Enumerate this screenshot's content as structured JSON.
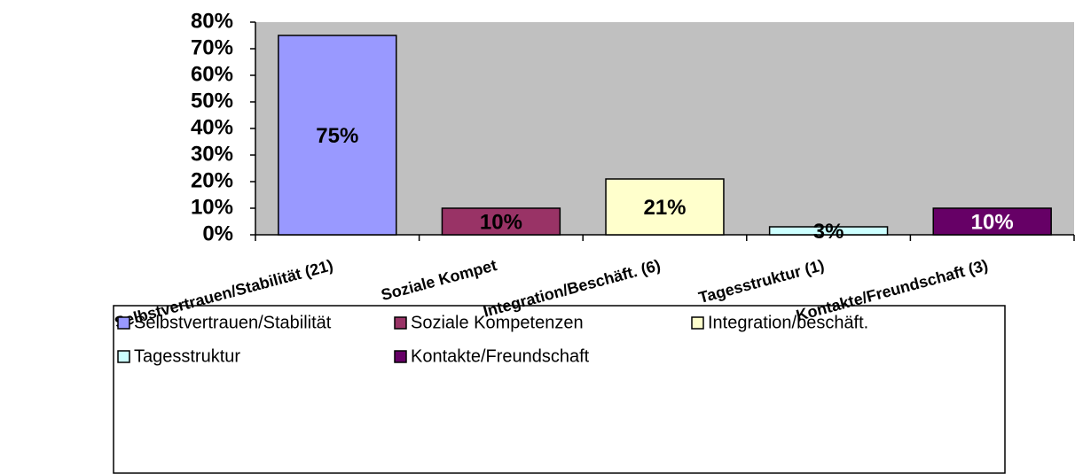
{
  "chart_data": {
    "type": "bar",
    "categories": [
      "Selbstvertrauen/Stabilität (21)",
      "Soziale Kompet",
      "Integration/Beschäft. (6)",
      "Tagesstruktur (1)",
      "Kontakte/Freundschaft (3)"
    ],
    "values": [
      75,
      10,
      21,
      3,
      10
    ],
    "value_labels": [
      "75%",
      "10%",
      "21%",
      "3%",
      "10%"
    ],
    "colors": [
      "#9999ff",
      "#993366",
      "#ffffcc",
      "#ccffff",
      "#660066"
    ],
    "legend": [
      "Selbstvertrauen/Stabilität",
      "Soziale Kompetenzen",
      "Integration/beschäft.",
      "Tagesstruktur",
      "Kontakte/Freundschaft"
    ],
    "ylim": [
      0,
      80
    ],
    "yticks": [
      {
        "value": 0,
        "label": "0%"
      },
      {
        "value": 10,
        "label": "10%"
      },
      {
        "value": 20,
        "label": "20%"
      },
      {
        "value": 30,
        "label": "30%"
      },
      {
        "value": 40,
        "label": "40%"
      },
      {
        "value": 50,
        "label": "50%"
      },
      {
        "value": 60,
        "label": "60%"
      },
      {
        "value": 70,
        "label": "70%"
      },
      {
        "value": 80,
        "label": "80%"
      }
    ],
    "plot_background": "#c0c0c0"
  }
}
